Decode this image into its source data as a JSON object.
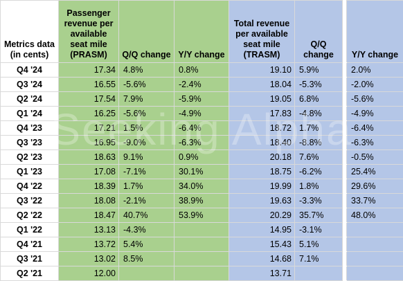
{
  "table": {
    "columns": [
      "Metrics data (in cents)",
      "Passenger revenue per available seat mile (PRASM)",
      "Q/Q change",
      "Y/Y change",
      "Total revenue per available seat mile (TRASM)",
      "Q/Q change",
      "Y/Y change"
    ],
    "rows": [
      [
        "Q4 '24",
        "17.34",
        "4.8%",
        "0.8%",
        "19.10",
        "5.9%",
        "2.0%"
      ],
      [
        "Q3 '24",
        "16.55",
        "-5.6%",
        "-2.4%",
        "18.04",
        "-5.3%",
        "-2.0%"
      ],
      [
        "Q2 '24",
        "17.54",
        "7.9%",
        "-5.9%",
        "19.05",
        "6.8%",
        "-5.6%"
      ],
      [
        "Q1 '24",
        "16.25",
        "-5.6%",
        "-4.9%",
        "17.83",
        "-4.8%",
        "-4.9%"
      ],
      [
        "Q4 '23",
        "17.21",
        "1.5%",
        "-6.4%",
        "18.72",
        "1.7%",
        "-6.4%"
      ],
      [
        "Q3 '23",
        "16.95",
        "-9.0%",
        "-6.3%",
        "18.40",
        "-8.8%",
        "-6.3%"
      ],
      [
        "Q2 '23",
        "18.63",
        "9.1%",
        "0.9%",
        "20.18",
        "7.6%",
        "-0.5%"
      ],
      [
        "Q1 '23",
        "17.08",
        "-7.1%",
        "30.1%",
        "18.75",
        "-6.2%",
        "25.4%"
      ],
      [
        "Q4 '22",
        "18.39",
        "1.7%",
        "34.0%",
        "19.99",
        "1.8%",
        "29.6%"
      ],
      [
        "Q3 '22",
        "18.08",
        "-2.1%",
        "38.9%",
        "19.63",
        "-3.3%",
        "33.7%"
      ],
      [
        "Q2 '22",
        "18.47",
        "40.7%",
        "53.9%",
        "20.29",
        "35.7%",
        "48.0%"
      ],
      [
        "Q1 '22",
        "13.13",
        "-4.3%",
        "",
        "14.95",
        "-3.1%",
        ""
      ],
      [
        "Q4 '21",
        "13.72",
        "5.4%",
        "",
        "15.43",
        "5.1%",
        ""
      ],
      [
        "Q3 '21",
        "13.02",
        "8.5%",
        "",
        "14.68",
        "7.1%",
        ""
      ],
      [
        "Q2 '21",
        "12.00",
        "",
        "",
        "13.71",
        "",
        ""
      ]
    ]
  },
  "watermark": "Seeking Alpha",
  "colors": {
    "passenger_fill": "#a9d08e",
    "total_fill": "#b4c6e7",
    "gridline": "#d9d9d9"
  }
}
